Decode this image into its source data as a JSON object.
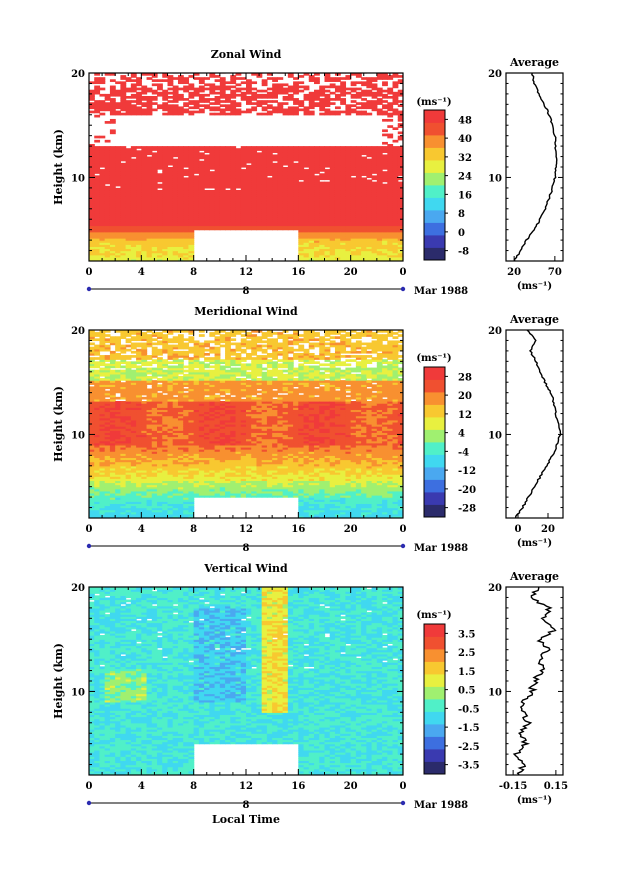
{
  "figure": {
    "xlabel": "Local Time",
    "date_label": "Mar 1988",
    "day_label": "8",
    "unit_label": "(ms⁻¹)"
  },
  "chart_data": [
    {
      "type": "heatmap",
      "name": "zonal",
      "title": "Zonal Wind",
      "ylabel": "Height (km)",
      "xlim": [
        0,
        24
      ],
      "ylim": [
        2,
        20
      ],
      "x_ticks": [
        "0",
        "4",
        "8",
        "12",
        "16",
        "20",
        "0"
      ],
      "y_ticks": [
        "10",
        "20"
      ],
      "colorbar_ticks": [
        "48",
        "40",
        "32",
        "24",
        "16",
        "8",
        "0",
        "-8"
      ],
      "colorbar_range": [
        -12,
        52
      ],
      "colors": [
        "#2b2b6b",
        "#3a3ab0",
        "#3d6fe0",
        "#4aa8f0",
        "#40d8f0",
        "#50f0c8",
        "#a0f070",
        "#e8f040",
        "#f8c830",
        "#f89030",
        "#f05030",
        "#f03a3a"
      ],
      "gap_x": [
        8,
        16
      ],
      "gap_y": [
        2,
        5
      ],
      "average": {
        "title": "Average",
        "x_ticks": [
          "20",
          "70"
        ],
        "xlim": [
          10,
          80
        ],
        "heights": [
          2,
          3,
          4,
          5,
          6,
          7,
          8,
          9,
          10,
          11,
          12,
          13,
          14,
          15,
          16,
          17,
          18,
          19,
          20
        ],
        "values": [
          20,
          28,
          35,
          45,
          52,
          58,
          63,
          67,
          70,
          71,
          72,
          71,
          70,
          67,
          63,
          57,
          50,
          45,
          42
        ]
      }
    },
    {
      "type": "heatmap",
      "name": "meridional",
      "title": "Meridional Wind",
      "ylabel": "Height (km)",
      "xlim": [
        0,
        24
      ],
      "ylim": [
        2,
        20
      ],
      "x_ticks": [
        "0",
        "4",
        "8",
        "12",
        "16",
        "20",
        "0"
      ],
      "y_ticks": [
        "10",
        "20"
      ],
      "colorbar_ticks": [
        "28",
        "20",
        "12",
        "4",
        "-4",
        "-12",
        "-20",
        "-28"
      ],
      "colorbar_range": [
        -32,
        32
      ],
      "colors": [
        "#2b2b6b",
        "#3a3ab0",
        "#3d6fe0",
        "#4aa8f0",
        "#40d8f0",
        "#50f0c8",
        "#a0f070",
        "#e8f040",
        "#f8c830",
        "#f89030",
        "#f05030",
        "#f03a3a"
      ],
      "gap_x": [
        8,
        16
      ],
      "gap_y": [
        2,
        4
      ],
      "average": {
        "title": "Average",
        "x_ticks": [
          "0",
          "20"
        ],
        "xlim": [
          -8,
          30
        ],
        "heights": [
          2,
          3,
          4,
          5,
          6,
          7,
          8,
          9,
          10,
          11,
          12,
          13,
          14,
          15,
          16,
          17,
          18,
          19,
          20
        ],
        "values": [
          -2,
          3,
          7,
          11,
          15,
          19,
          23,
          26,
          28,
          27,
          25,
          24,
          22,
          18,
          15,
          12,
          8,
          12,
          6
        ]
      }
    },
    {
      "type": "heatmap",
      "name": "vertical",
      "title": "Vertical Wind",
      "ylabel": "Height (km)",
      "xlim": [
        0,
        24
      ],
      "ylim": [
        2,
        20
      ],
      "x_ticks": [
        "0",
        "4",
        "8",
        "12",
        "16",
        "20",
        "0"
      ],
      "y_ticks": [
        "10",
        "20"
      ],
      "colorbar_ticks": [
        "3.5",
        "2.5",
        "1.5",
        "0.5",
        "-0.5",
        "-1.5",
        "-2.5",
        "-3.5"
      ],
      "colorbar_range": [
        -4,
        4
      ],
      "colors": [
        "#2b2b6b",
        "#3a3ab0",
        "#3d6fe0",
        "#4aa8f0",
        "#40d8f0",
        "#50f0c8",
        "#a0f070",
        "#e8f040",
        "#f8c830",
        "#f89030",
        "#f05030",
        "#f03a3a"
      ],
      "gap_x": [
        8,
        16
      ],
      "gap_y": [
        2,
        5
      ],
      "average": {
        "title": "Average",
        "x_ticks": [
          "-0.15",
          "0.15"
        ],
        "xlim": [
          -0.2,
          0.2
        ],
        "heights": [
          2,
          3,
          4,
          5,
          6,
          7,
          8,
          9,
          10,
          11,
          12,
          13,
          14,
          15,
          16,
          17,
          18,
          19,
          20
        ],
        "values": [
          -0.12,
          -0.08,
          -0.13,
          -0.06,
          -0.1,
          -0.05,
          -0.08,
          -0.07,
          -0.02,
          0.0,
          0.05,
          0.03,
          0.09,
          0.04,
          0.15,
          0.06,
          0.1,
          -0.02,
          0.03
        ]
      }
    }
  ]
}
